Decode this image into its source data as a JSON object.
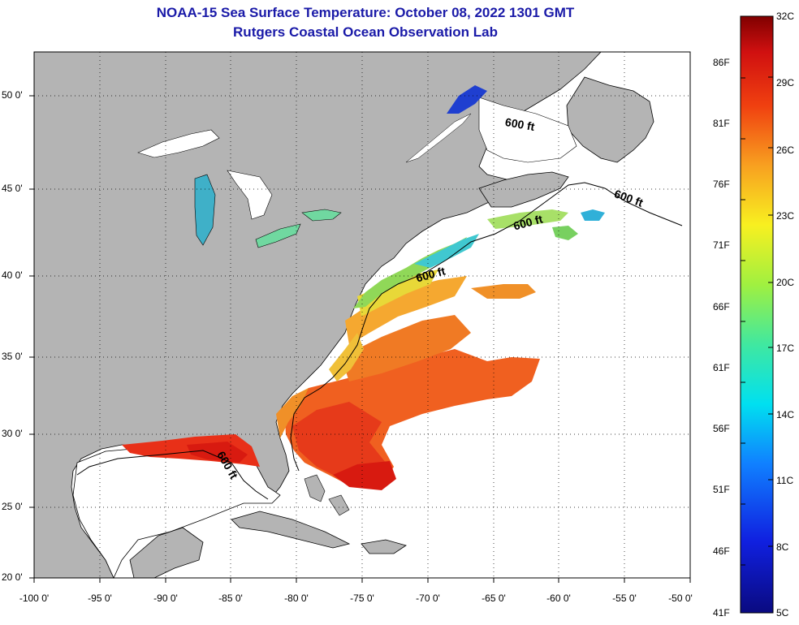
{
  "header": {
    "title": "NOAA-15 Sea Surface Temperature:  October 08, 2022 1301 GMT",
    "subtitle": "Rutgers Coastal Ocean Observation Lab"
  },
  "axes": {
    "lat_labels": [
      "50 0'",
      "45 0'",
      "40 0'",
      "35 0'",
      "30 0'",
      "25 0'",
      "20 0'"
    ],
    "lon_labels": [
      "-100 0'",
      "-95 0'",
      "-90 0'",
      "-85 0'",
      "-80 0'",
      "-75 0'",
      "-70 0'",
      "-65 0'",
      "-60 0'",
      "-55 0'",
      "-50 0'"
    ]
  },
  "contours": {
    "label": "600 ft"
  },
  "colorbar": {
    "fahrenheit": [
      "86F",
      "81F",
      "76F",
      "71F",
      "66F",
      "61F",
      "56F",
      "51F",
      "46F",
      "41F"
    ],
    "celsius": [
      "32C",
      "29C",
      "26C",
      "23C",
      "20C",
      "17C",
      "14C",
      "11C",
      "8C",
      "5C"
    ]
  },
  "colors": {
    "land": "#b4b4b4",
    "water_nodata": "#ffffff",
    "title": "#1a1aa8"
  }
}
